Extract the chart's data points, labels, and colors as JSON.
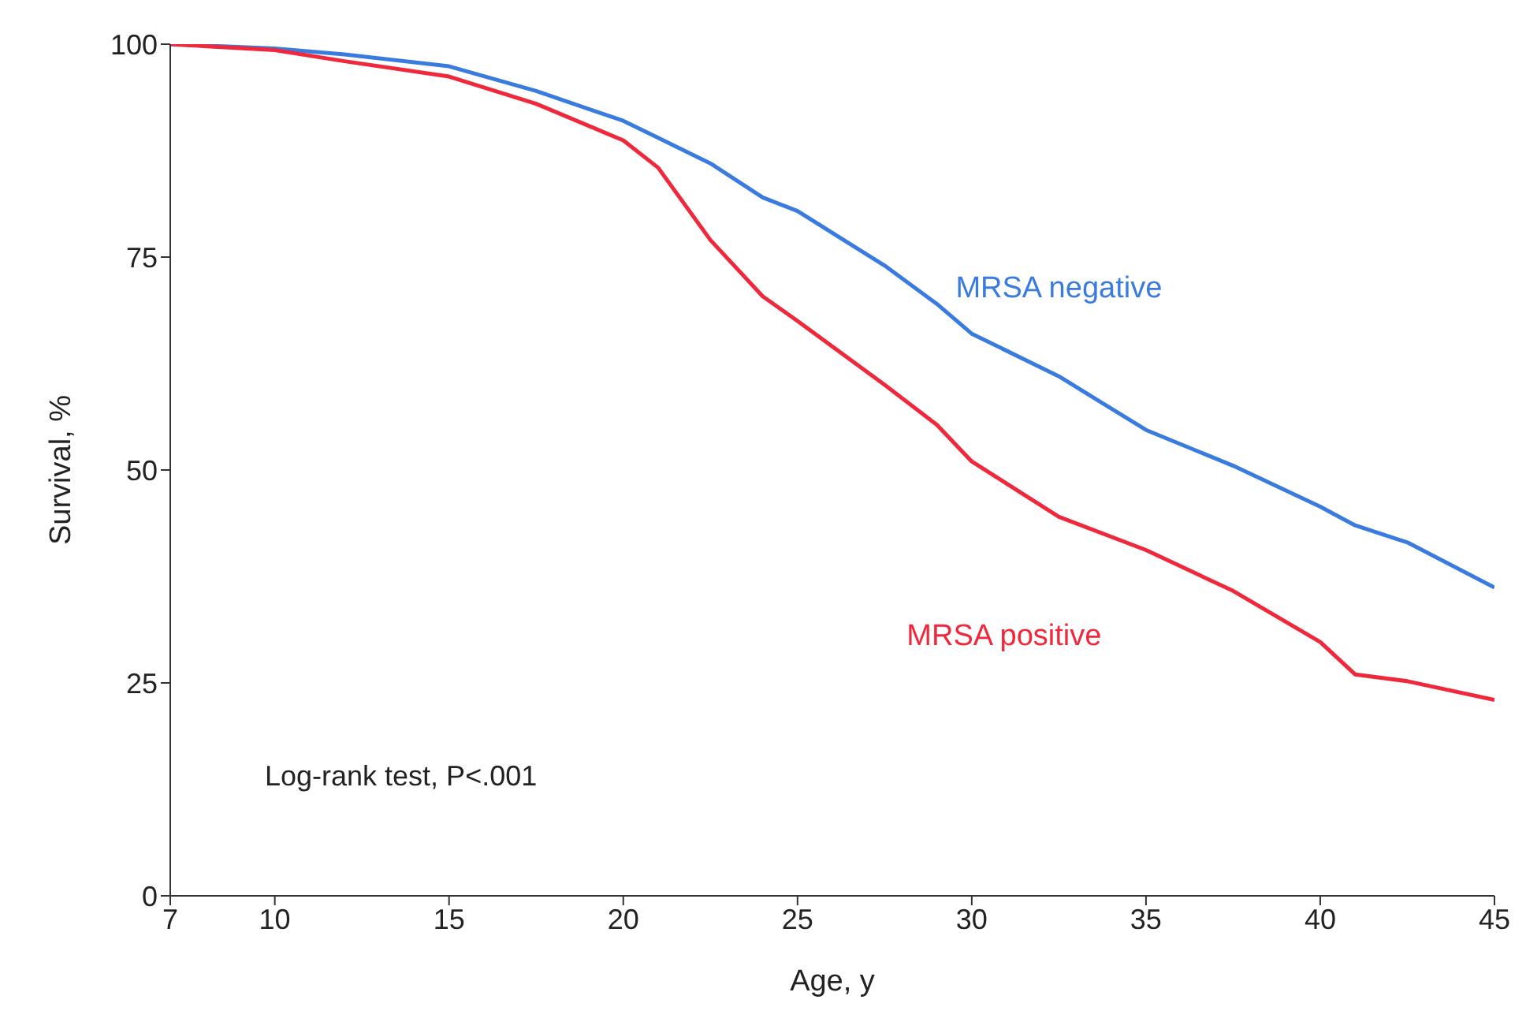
{
  "chart_data": {
    "type": "line",
    "xlabel": "Age, y",
    "ylabel": "Survival, %",
    "x": [
      7,
      10,
      12,
      15,
      17.5,
      20,
      21,
      22.5,
      24,
      25,
      27.5,
      29,
      30,
      32.5,
      35,
      37.5,
      40,
      41,
      42.5,
      45
    ],
    "series": [
      {
        "name": "MRSA negative",
        "color": "#3a7be0",
        "values": [
          100,
          99.5,
          98.8,
          97.4,
          94.5,
          91,
          89,
          86,
          82,
          80.4,
          74,
          69.5,
          66,
          61,
          54.7,
          50.5,
          45.7,
          43.5,
          41.5,
          36.2
        ]
      },
      {
        "name": "MRSA positive",
        "color": "#f0283c",
        "values": [
          100,
          99.3,
          98,
          96.2,
          93,
          88.7,
          85.5,
          77,
          70.4,
          67.5,
          60,
          55.3,
          51,
          44.5,
          40.6,
          35.8,
          29.8,
          26,
          25.2,
          23
        ]
      }
    ],
    "xlim": [
      7,
      45
    ],
    "xticks": [
      7,
      10,
      15,
      20,
      25,
      30,
      35,
      40,
      45
    ],
    "ylim": [
      0,
      100
    ],
    "yticks": [
      0,
      25,
      50,
      75,
      100
    ],
    "annotations": [
      "Log-rank test, P<.001"
    ],
    "grid": false
  }
}
